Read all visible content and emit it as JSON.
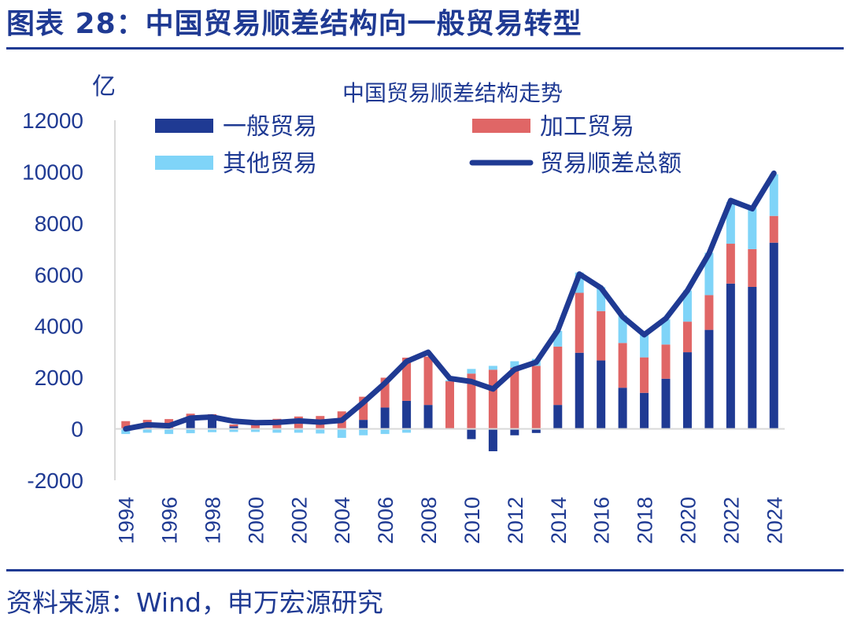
{
  "figure_title": "图表 28：中国贸易顺差结构向一般贸易转型",
  "source": "资料来源：Wind，申万宏源研究",
  "colors": {
    "title": "#1f3a93",
    "general": "#1f3a93",
    "processing": "#e06666",
    "other": "#7fd4f8",
    "total": "#1f3a93"
  },
  "chart_data": {
    "type": "bar",
    "stacked": true,
    "title": "中国贸易顺差结构走势",
    "ylabel": "亿",
    "ylim": [
      -2000,
      12000
    ],
    "yticks": [
      -2000,
      0,
      2000,
      4000,
      6000,
      8000,
      10000,
      12000
    ],
    "x": [
      1994,
      1995,
      1996,
      1997,
      1998,
      1999,
      2000,
      2001,
      2002,
      2003,
      2004,
      2005,
      2006,
      2007,
      2008,
      2009,
      2010,
      2011,
      2012,
      2013,
      2014,
      2015,
      2016,
      2017,
      2018,
      2019,
      2020,
      2021,
      2022,
      2023,
      2024
    ],
    "xticks": [
      "1994",
      "1996",
      "1998",
      "2000",
      "2002",
      "2004",
      "2006",
      "2008",
      "2010",
      "2012",
      "2014",
      "2016",
      "2018",
      "2020",
      "2022",
      "2024"
    ],
    "legend_position": "top",
    "series": [
      {
        "name": "一般贸易",
        "type": "bar",
        "values": [
          30,
          20,
          10,
          460,
          490,
          100,
          0,
          10,
          10,
          0,
          -20,
          350,
          830,
          1090,
          930,
          0,
          -400,
          -870,
          -250,
          -160,
          930,
          2960,
          2660,
          1600,
          1400,
          1950,
          2980,
          3850,
          5650,
          5520,
          7240
        ]
      },
      {
        "name": "加工贸易",
        "type": "bar",
        "values": [
          270,
          330,
          370,
          130,
          80,
          70,
          320,
          380,
          470,
          500,
          680,
          900,
          1160,
          1680,
          1880,
          1850,
          2150,
          2300,
          2380,
          2450,
          2270,
          2330,
          1920,
          1740,
          1380,
          1330,
          1190,
          1350,
          1550,
          1470,
          1040
        ]
      },
      {
        "name": "其他贸易",
        "type": "bar",
        "values": [
          -200,
          -150,
          -200,
          -170,
          -130,
          -120,
          -120,
          -150,
          -150,
          -180,
          -330,
          -250,
          -200,
          -150,
          -10,
          40,
          180,
          150,
          250,
          270,
          610,
          790,
          930,
          1070,
          890,
          980,
          1210,
          1650,
          1620,
          1600,
          1620
        ]
      },
      {
        "name": "贸易顺差总额",
        "type": "line",
        "values": [
          0,
          160,
          120,
          420,
          460,
          300,
          240,
          250,
          310,
          260,
          330,
          1030,
          1780,
          2620,
          2980,
          1960,
          1840,
          1550,
          2310,
          2590,
          3830,
          6020,
          5480,
          4360,
          3660,
          4290,
          5380,
          6820,
          8880,
          8560,
          9940
        ]
      }
    ]
  }
}
